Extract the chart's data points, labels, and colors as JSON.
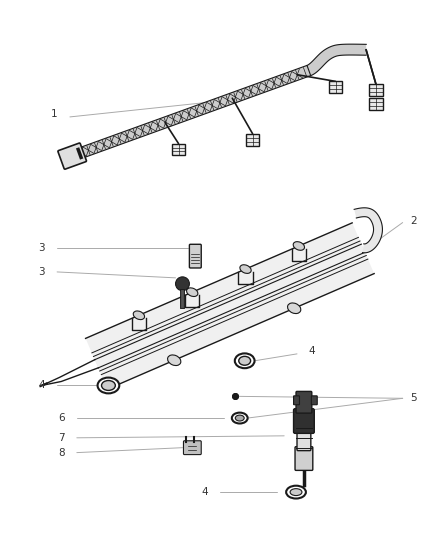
{
  "background_color": "#ffffff",
  "fig_width": 4.39,
  "fig_height": 5.33,
  "dpi": 100,
  "line_color": "#1a1a1a",
  "label_color": "#333333",
  "leader_color": "#aaaaaa",
  "label_fontsize": 7.5
}
